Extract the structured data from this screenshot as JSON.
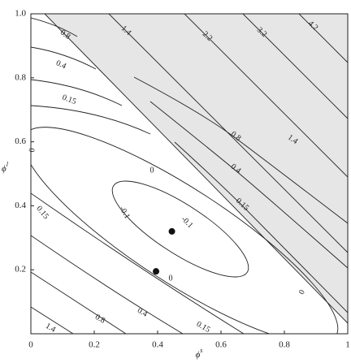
{
  "chart_data": {
    "type": "contour",
    "x_label": {
      "symbol": "ϕ",
      "superscript": "s"
    },
    "y_label": {
      "symbol": "ϕ",
      "superscript": "l"
    },
    "xlim": [
      0,
      1
    ],
    "ylim": [
      0,
      1
    ],
    "xticks": [
      0,
      0.2,
      0.4,
      0.6,
      0.8,
      1
    ],
    "yticks": [
      0.2,
      0.4,
      0.6,
      0.8,
      {
        "value": 1,
        "label": "1.0"
      }
    ],
    "contour_labels": [
      0.8,
      0.4,
      0.15,
      0,
      1.4,
      2.2,
      3.2,
      4.2,
      0.8,
      1.4,
      0.4,
      0.15,
      0,
      -0.1,
      -0.1,
      0,
      0.15,
      1.4,
      0.8,
      0.4,
      0.15,
      0
    ],
    "points": {
      "x": [
        0.445,
        0.395
      ],
      "y": [
        0.32,
        0.195
      ],
      "color": "#111"
    },
    "shaded_color": "#e6e6e6"
  }
}
